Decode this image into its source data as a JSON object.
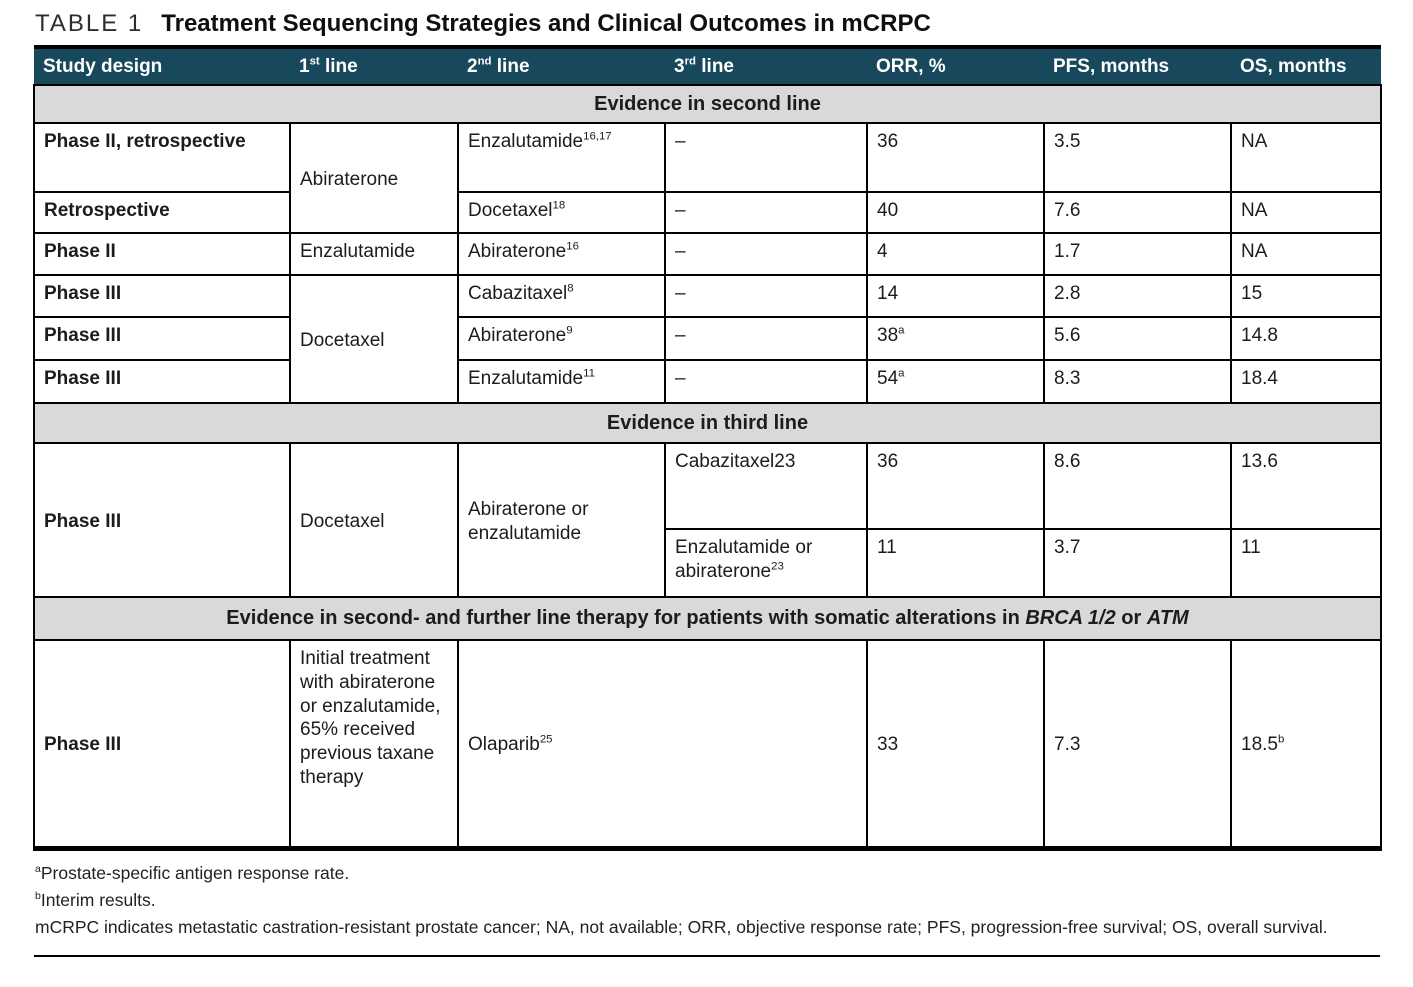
{
  "caption": {
    "label": "TABLE 1",
    "title": "Treatment Sequencing Strategies and Clinical Outcomes in mCRPC"
  },
  "table": {
    "columns": [
      "Study design",
      "1^{st} line",
      "2^{nd} line",
      "3^{rd} line",
      "ORR, %",
      "PFS, months",
      "OS, months"
    ],
    "rows": [
      {
        "section": "Evidence in second line"
      },
      {
        "cells": [
          {
            "t": "Phase II, retrospective",
            "bold": true
          },
          {
            "t": "Abiraterone",
            "rs": 2
          },
          {
            "t": "Enzalutamide^{16,17}"
          },
          {
            "t": "–"
          },
          {
            "t": "36"
          },
          {
            "t": "3.5"
          },
          {
            "t": "NA"
          }
        ]
      },
      {
        "cells": [
          {
            "t": "Retrospective",
            "bold": true
          },
          {
            "t": "Docetaxel^{18}"
          },
          {
            "t": "–"
          },
          {
            "t": "40"
          },
          {
            "t": "7.6"
          },
          {
            "t": "NA"
          }
        ]
      },
      {
        "cells": [
          {
            "t": "Phase II",
            "bold": true
          },
          {
            "t": "Enzalutamide"
          },
          {
            "t": "Abiraterone^{16}"
          },
          {
            "t": "–"
          },
          {
            "t": "4"
          },
          {
            "t": "1.7"
          },
          {
            "t": "NA"
          }
        ]
      },
      {
        "cells": [
          {
            "t": "Phase III",
            "bold": true
          },
          {
            "t": "Docetaxel",
            "rs": 3
          },
          {
            "t": "Cabazitaxel^{8}"
          },
          {
            "t": "–"
          },
          {
            "t": "14"
          },
          {
            "t": "2.8"
          },
          {
            "t": "15"
          }
        ]
      },
      {
        "cells": [
          {
            "t": "Phase III",
            "bold": true
          },
          {
            "t": "Abiraterone^{9}"
          },
          {
            "t": "–"
          },
          {
            "t": "38^{a}"
          },
          {
            "t": "5.6"
          },
          {
            "t": "14.8"
          }
        ]
      },
      {
        "cells": [
          {
            "t": "Phase III",
            "bold": true
          },
          {
            "t": "Enzalutamide^{11}"
          },
          {
            "t": "–"
          },
          {
            "t": "54^{a}"
          },
          {
            "t": "8.3"
          },
          {
            "t": "18.4"
          }
        ]
      },
      {
        "section": "Evidence in third line"
      },
      {
        "cells": [
          {
            "t": "Phase III",
            "bold": true,
            "rs": 2
          },
          {
            "t": "Docetaxel",
            "rs": 2
          },
          {
            "t": "Abiraterone or enzalutamide",
            "rs": 2
          },
          {
            "t": "Cabazitaxel23"
          },
          {
            "t": "36"
          },
          {
            "t": "8.6"
          },
          {
            "t": "13.6"
          }
        ]
      },
      {
        "cells": [
          {
            "t": "Enzalutamide or abiraterone^{23}"
          },
          {
            "t": "11"
          },
          {
            "t": "3.7"
          },
          {
            "t": "11"
          }
        ]
      },
      {
        "section": "Evidence in second- and further line therapy for patients with somatic alterations in _{BRCA 1/2} or _{ATM}"
      },
      {
        "vmid": true,
        "cells": [
          {
            "t": "Phase III",
            "bold": true
          },
          {
            "t": "Initial treatment with abiraterone or enzalutamide, 65% received previous taxane therapy",
            "top": true
          },
          {
            "t": "Olaparib^{25}",
            "cs": 2
          },
          {
            "t": "33"
          },
          {
            "t": "7.3"
          },
          {
            "t": "18.5^{b}"
          }
        ]
      }
    ]
  },
  "footnotes": [
    "^{a}Prostate-specific antigen response rate.",
    "^{b}Interim results.",
    "mCRPC indicates metastatic castration-resistant prostate cancer; NA, not available; ORR, objective response rate; PFS, progression-free survival; OS, overall survival."
  ],
  "colors": {
    "header_bg": "#17485C",
    "section_bg": "#D8D9DB",
    "border": "#000000"
  }
}
